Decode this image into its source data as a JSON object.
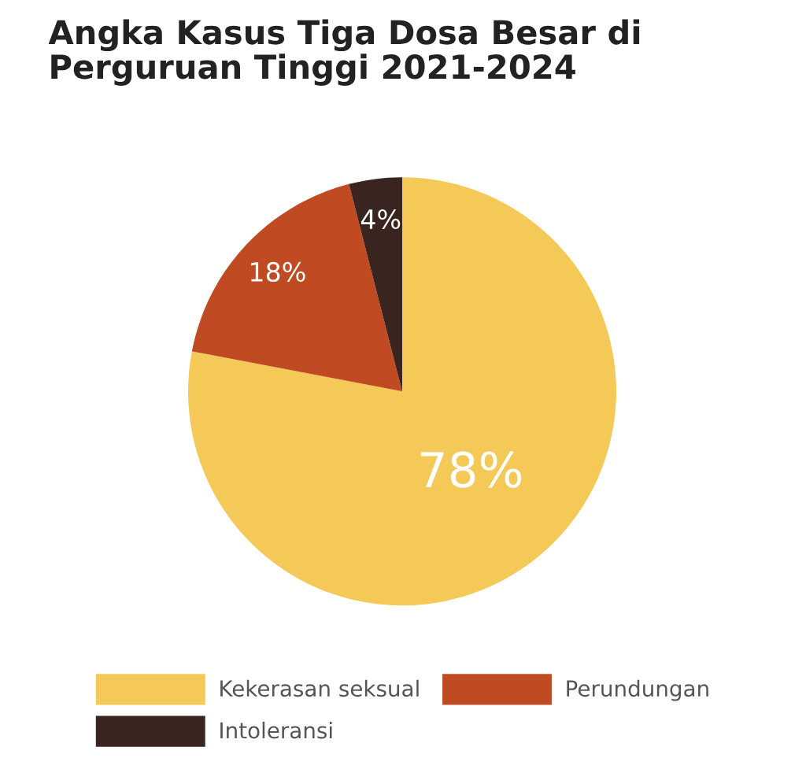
{
  "chart_data": {
    "type": "pie",
    "title": "Angka Kasus Tiga Dosa Besar di\nPerguruan Tinggi 2021-2024",
    "categories": [
      "Kekerasan seksual",
      "Perundungan",
      "Intoleransi"
    ],
    "values": [
      78,
      18,
      4
    ],
    "colors": [
      "#f5c957",
      "#c04b22",
      "#3a2420"
    ],
    "value_labels": [
      "78%",
      "18%",
      "4%"
    ],
    "legend": "bottom"
  }
}
